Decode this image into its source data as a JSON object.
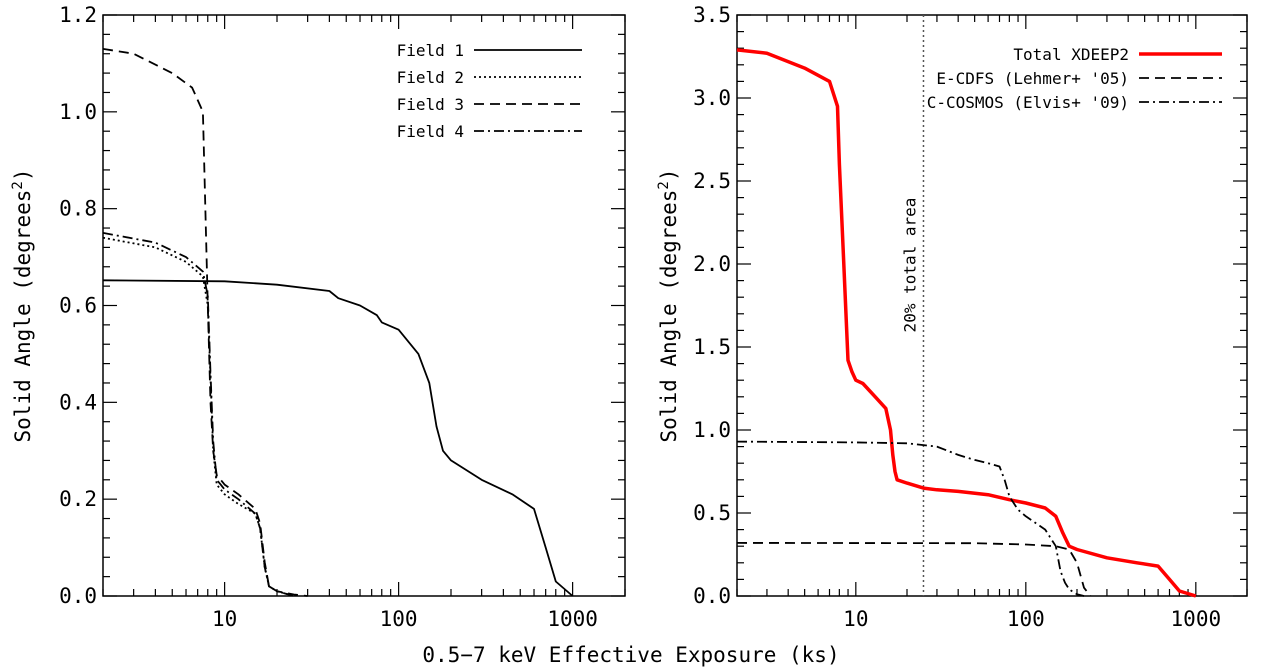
{
  "chart_data": [
    {
      "type": "line",
      "xscale": "log",
      "xlim": [
        2,
        2000
      ],
      "ylim": [
        0,
        1.2
      ],
      "ylabel_main": "Solid Angle (degrees",
      "ylabel_sup": "2",
      "ylabel_tail": ")",
      "yticks": [
        "0.0",
        "0.2",
        "0.4",
        "0.6",
        "0.8",
        "1.0",
        "1.2"
      ],
      "xticks": [
        "10",
        "100",
        "1000"
      ],
      "legend_placement": "top-right",
      "series": [
        {
          "name": "Field 1",
          "color": "#000000",
          "style": "solid",
          "x": [
            2,
            10,
            20,
            40,
            45,
            60,
            75,
            80,
            100,
            130,
            150,
            165,
            180,
            200,
            300,
            450,
            600,
            700,
            800,
            1000
          ],
          "y": [
            0.652,
            0.65,
            0.643,
            0.63,
            0.615,
            0.6,
            0.58,
            0.565,
            0.55,
            0.5,
            0.44,
            0.35,
            0.3,
            0.28,
            0.24,
            0.21,
            0.18,
            0.1,
            0.03,
            0.0
          ]
        },
        {
          "name": "Field 2",
          "color": "#000000",
          "style": "dotted",
          "x": [
            2,
            4,
            6,
            7.5,
            8,
            8.3,
            8.6,
            9,
            9.5,
            10,
            12,
            15,
            16,
            17,
            18,
            20,
            25
          ],
          "y": [
            0.74,
            0.72,
            0.69,
            0.66,
            0.6,
            0.45,
            0.3,
            0.23,
            0.22,
            0.21,
            0.19,
            0.17,
            0.14,
            0.06,
            0.02,
            0.01,
            0.0
          ]
        },
        {
          "name": "Field 3",
          "color": "#000000",
          "style": "dashed",
          "x": [
            2,
            3,
            5,
            6.5,
            7.5,
            8,
            8.3,
            8.6,
            9,
            9.5,
            10,
            12,
            15,
            16,
            17,
            18,
            20,
            25,
            30
          ],
          "y": [
            1.13,
            1.12,
            1.08,
            1.05,
            1.0,
            0.6,
            0.4,
            0.3,
            0.25,
            0.24,
            0.23,
            0.21,
            0.18,
            0.15,
            0.07,
            0.02,
            0.01,
            0.003,
            0.0
          ]
        },
        {
          "name": "Field 4",
          "color": "#000000",
          "style": "dashdot",
          "x": [
            2,
            4,
            6,
            7.5,
            8,
            8.3,
            8.6,
            9,
            9.5,
            10,
            12,
            15,
            16,
            17,
            18,
            20,
            25
          ],
          "y": [
            0.75,
            0.73,
            0.7,
            0.67,
            0.62,
            0.46,
            0.32,
            0.24,
            0.23,
            0.22,
            0.2,
            0.17,
            0.14,
            0.06,
            0.02,
            0.01,
            0.0
          ]
        }
      ]
    },
    {
      "type": "line",
      "xscale": "log",
      "xlim": [
        2,
        2000
      ],
      "ylim": [
        0,
        3.5
      ],
      "ylabel_main": "Solid Angle (degrees",
      "ylabel_sup": "2",
      "ylabel_tail": ")",
      "yticks": [
        "0.0",
        "0.5",
        "1.0",
        "1.5",
        "2.0",
        "2.5",
        "3.0",
        "3.5"
      ],
      "xticks": [
        "10",
        "100",
        "1000"
      ],
      "legend_placement": "top-right",
      "vline": {
        "x": 25,
        "label": "20% total area"
      },
      "series": [
        {
          "name": "Total XDEEP2",
          "color": "#ff0000",
          "style": "solid",
          "x": [
            2,
            3,
            5,
            7,
            7.8,
            8,
            8.5,
            9,
            9.5,
            10,
            11,
            13,
            15,
            16,
            16.5,
            17,
            17.5,
            20,
            25,
            30,
            40,
            60,
            80,
            100,
            130,
            150,
            165,
            180,
            200,
            300,
            450,
            600,
            700,
            800,
            1000
          ],
          "y": [
            3.29,
            3.27,
            3.18,
            3.1,
            2.95,
            2.6,
            2.0,
            1.42,
            1.35,
            1.3,
            1.28,
            1.2,
            1.13,
            1.0,
            0.85,
            0.75,
            0.7,
            0.68,
            0.65,
            0.64,
            0.63,
            0.61,
            0.58,
            0.56,
            0.53,
            0.48,
            0.38,
            0.3,
            0.28,
            0.23,
            0.2,
            0.18,
            0.1,
            0.03,
            0.0
          ]
        },
        {
          "name": "E-CDFS (Lehmer+ '05)",
          "color": "#000000",
          "style": "dashed",
          "x": [
            2,
            50,
            100,
            150,
            180,
            200,
            220,
            240
          ],
          "y": [
            0.32,
            0.318,
            0.31,
            0.3,
            0.28,
            0.2,
            0.05,
            0.0
          ]
        },
        {
          "name": "C-COSMOS (Elvis+ '09)",
          "color": "#000000",
          "style": "dashdot",
          "x": [
            2,
            10,
            20,
            30,
            40,
            50,
            60,
            70,
            75,
            80,
            90,
            100,
            130,
            150,
            160,
            170,
            180,
            200,
            220
          ],
          "y": [
            0.93,
            0.925,
            0.92,
            0.9,
            0.85,
            0.82,
            0.8,
            0.78,
            0.7,
            0.6,
            0.52,
            0.48,
            0.4,
            0.3,
            0.15,
            0.08,
            0.04,
            0.01,
            0.0
          ]
        }
      ]
    }
  ],
  "xlabel": "0.5−7 keV Effective Exposure (ks)"
}
